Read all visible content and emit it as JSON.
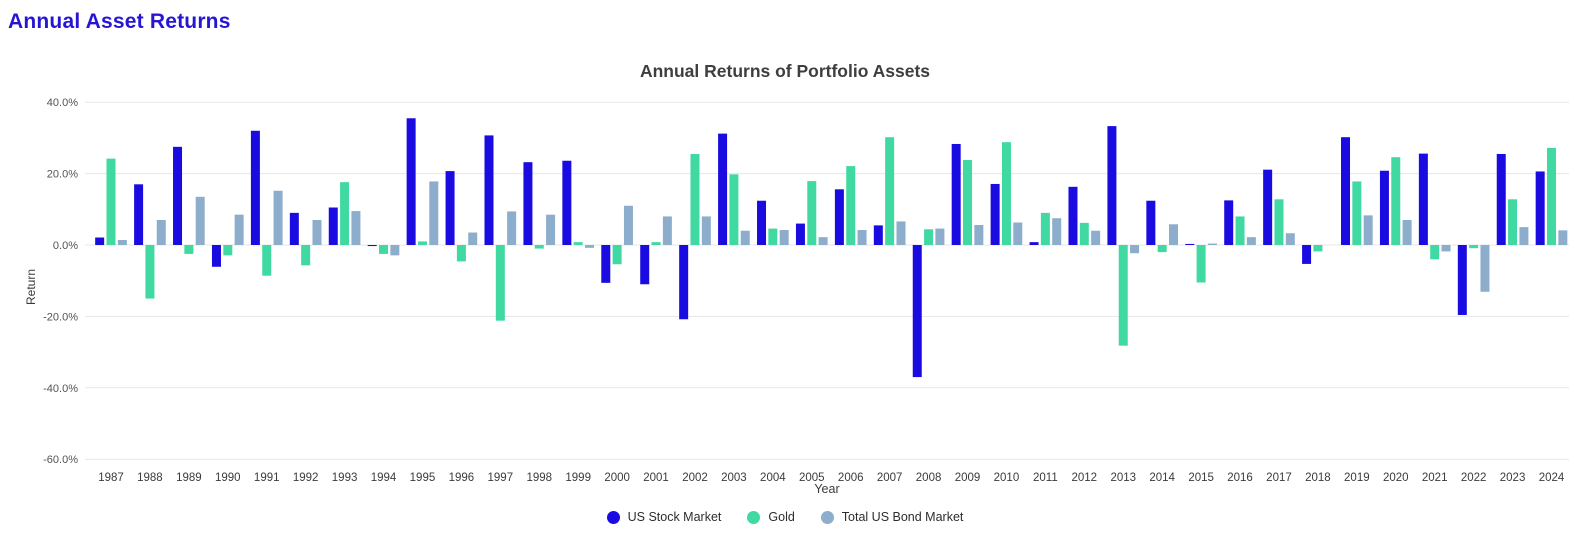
{
  "page": {
    "title": "Annual Asset Returns"
  },
  "chart_data": {
    "type": "bar",
    "title": "Annual Returns of Portfolio Assets",
    "xlabel": "Year",
    "ylabel": "Return",
    "ylim": [
      -60,
      40
    ],
    "yticks": [
      40,
      20,
      0,
      -20,
      -40,
      -60
    ],
    "ytick_labels": [
      "40.0%",
      "20.0%",
      "0.0%",
      "-20.0%",
      "-40.0%",
      "-60.0%"
    ],
    "grid": true,
    "legend_position": "bottom",
    "value_unit": "percent",
    "categories": [
      1987,
      1988,
      1989,
      1990,
      1991,
      1992,
      1993,
      1994,
      1995,
      1996,
      1997,
      1998,
      1999,
      2000,
      2001,
      2002,
      2003,
      2004,
      2005,
      2006,
      2007,
      2008,
      2009,
      2010,
      2011,
      2012,
      2013,
      2014,
      2015,
      2016,
      2017,
      2018,
      2019,
      2020,
      2021,
      2022,
      2023,
      2024
    ],
    "series": [
      {
        "name": "US Stock Market",
        "color": "#1A0CE0",
        "values": [
          2.1,
          17.0,
          27.5,
          -6.1,
          32.0,
          9.0,
          10.5,
          -0.3,
          35.5,
          20.7,
          30.7,
          23.2,
          23.6,
          -10.6,
          -11.0,
          -20.8,
          31.2,
          12.4,
          6.0,
          15.6,
          5.5,
          -37.0,
          28.3,
          17.1,
          0.8,
          16.3,
          33.3,
          12.4,
          0.3,
          12.5,
          21.1,
          -5.3,
          30.2,
          20.8,
          25.6,
          -19.6,
          25.5,
          20.6
        ]
      },
      {
        "name": "Gold",
        "color": "#40D9A2",
        "values": [
          24.2,
          -15.0,
          -2.5,
          -2.9,
          -8.6,
          -5.7,
          17.6,
          -2.5,
          1.0,
          -4.6,
          -21.2,
          -1.0,
          0.8,
          -5.4,
          0.8,
          25.5,
          19.8,
          4.6,
          17.9,
          22.1,
          30.2,
          4.4,
          23.8,
          28.8,
          9.0,
          6.2,
          -28.2,
          -2.0,
          -10.5,
          8.0,
          12.8,
          -1.8,
          17.8,
          24.6,
          -4.0,
          -0.9,
          12.8,
          27.2
        ]
      },
      {
        "name": "Total US Bond Market",
        "color": "#8CADCB",
        "values": [
          1.4,
          7.0,
          13.5,
          8.5,
          15.2,
          7.0,
          9.5,
          -2.9,
          17.8,
          3.5,
          9.4,
          8.5,
          -0.8,
          11.0,
          8.0,
          8.0,
          4.0,
          4.2,
          2.2,
          4.2,
          6.6,
          4.6,
          5.6,
          6.3,
          7.5,
          4.0,
          -2.3,
          5.8,
          0.4,
          2.2,
          3.3,
          0.0,
          8.3,
          7.0,
          -1.8,
          -13.1,
          5.0,
          4.1
        ]
      }
    ]
  }
}
